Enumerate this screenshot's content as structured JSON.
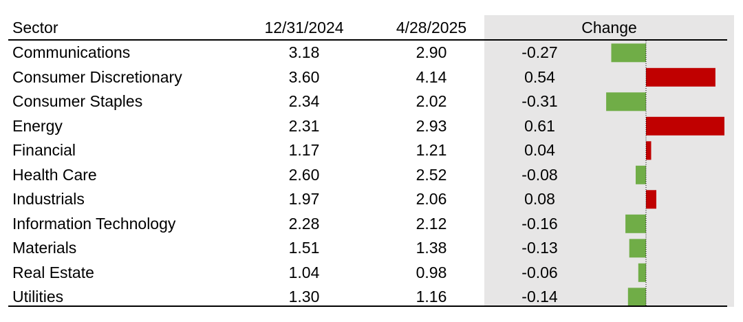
{
  "headers": {
    "sector": "Sector",
    "date1": "12/31/2024",
    "date2": "4/28/2025",
    "change": "Change"
  },
  "rows": [
    {
      "sector": "Communications",
      "v1": "3.18",
      "v2": "2.90",
      "change": "-0.27"
    },
    {
      "sector": "Consumer Discretionary",
      "v1": "3.60",
      "v2": "4.14",
      "change": "0.54"
    },
    {
      "sector": "Consumer Staples",
      "v1": "2.34",
      "v2": "2.02",
      "change": "-0.31"
    },
    {
      "sector": "Energy",
      "v1": "2.31",
      "v2": "2.93",
      "change": "0.61"
    },
    {
      "sector": "Financial",
      "v1": "1.17",
      "v2": "1.21",
      "change": "0.04"
    },
    {
      "sector": "Health Care",
      "v1": "2.60",
      "v2": "2.52",
      "change": "-0.08"
    },
    {
      "sector": "Industrials",
      "v1": "1.97",
      "v2": "2.06",
      "change": "0.08"
    },
    {
      "sector": "Information Technology",
      "v1": "2.28",
      "v2": "2.12",
      "change": "-0.16"
    },
    {
      "sector": "Materials",
      "v1": "1.51",
      "v2": "1.38",
      "change": "-0.13"
    },
    {
      "sector": "Real Estate",
      "v1": "1.04",
      "v2": "0.98",
      "change": "-0.06"
    },
    {
      "sector": "Utilities",
      "v1": "1.30",
      "v2": "1.16",
      "change": "-0.14"
    }
  ],
  "chart_data": {
    "type": "bar",
    "orientation": "horizontal",
    "categories": [
      "Communications",
      "Consumer Discretionary",
      "Consumer Staples",
      "Energy",
      "Financial",
      "Health Care",
      "Industrials",
      "Information Technology",
      "Materials",
      "Real Estate",
      "Utilities"
    ],
    "values": [
      -0.27,
      0.54,
      -0.31,
      0.61,
      0.04,
      -0.08,
      0.08,
      -0.16,
      -0.13,
      -0.06,
      -0.14
    ],
    "xlim": [
      -0.31,
      0.61
    ],
    "colors": {
      "positive": "#c00000",
      "negative": "#70ad47",
      "zero_line": "#000000",
      "background": "#e7e6e6"
    }
  }
}
